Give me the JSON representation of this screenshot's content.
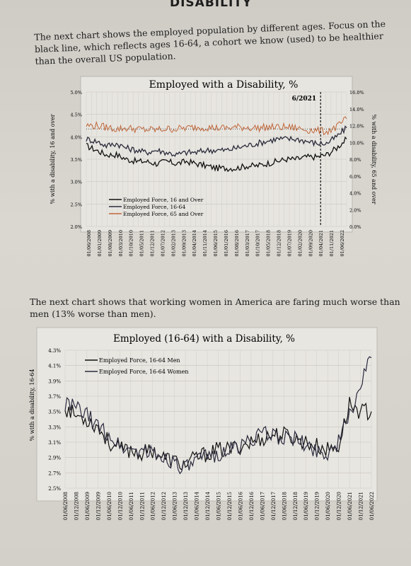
{
  "header": "DISABILITY",
  "paragraph1": "The next chart shows the employed population by different ages. Focus on the black line, which reflects ages 16-64, a cohort we know (used) to be healthier than the overall US population.",
  "paragraph2": "The next chart shows that working women in America are faring much worse than men (13% worse than men).",
  "chart_data": [
    {
      "type": "line",
      "title": "Employed with a Disability, %",
      "ylabel": "% with a disability, 16 and over",
      "y2label": "% with a disability, 65 and over",
      "ylim": [
        2.0,
        5.0
      ],
      "y2lim": [
        0.0,
        16.0
      ],
      "yticks": [
        "2.0%",
        "2.5%",
        "3.0%",
        "3.5%",
        "4.0%",
        "4.5%",
        "5.0%"
      ],
      "y2ticks": [
        "0.0%",
        "2.0%",
        "4.0%",
        "6.0%",
        "8.0%",
        "10.0%",
        "12.0%",
        "14.0%",
        "16.0%"
      ],
      "xticks": [
        "01/06/2008",
        "01/01/2009",
        "01/08/2009",
        "01/03/2010",
        "01/10/2010",
        "01/05/2011",
        "01/12/2011",
        "01/07/2012",
        "01/02/2013",
        "01/09/2013",
        "01/04/2014",
        "01/11/2014",
        "01/06/2015",
        "01/01/2016",
        "01/08/2016",
        "01/03/2017",
        "01/10/2017",
        "01/05/2018",
        "01/12/2018",
        "01/07/2019",
        "01/02/2020",
        "01/09/2020",
        "01/04/2021",
        "01/11/2021",
        "01/06/2022"
      ],
      "annotation": "6/2021",
      "legend_position": "bottom-left",
      "series": [
        {
          "name": "Employed Force, 16 and Over",
          "axis": "left",
          "color": "#111111",
          "values": [
            3.8,
            3.7,
            3.6,
            3.6,
            3.5,
            3.45,
            3.45,
            3.4,
            3.45,
            3.4,
            3.45,
            3.4,
            3.35,
            3.3,
            3.3,
            3.3,
            3.35,
            3.35,
            3.4,
            3.45,
            3.5,
            3.5,
            3.55,
            3.55,
            3.6,
            3.75,
            3.95
          ]
        },
        {
          "name": "Employed Force, 16-64",
          "axis": "left",
          "color": "#2a2a3a",
          "values": [
            3.95,
            3.9,
            3.8,
            3.85,
            3.75,
            3.7,
            3.65,
            3.7,
            3.65,
            3.6,
            3.65,
            3.65,
            3.7,
            3.7,
            3.7,
            3.75,
            3.8,
            3.85,
            3.9,
            3.95,
            3.95,
            3.95,
            3.9,
            3.85,
            3.85,
            4.0,
            4.2
          ]
        },
        {
          "name": "Employed Force, 65 and Over",
          "axis": "right",
          "color": "#c0673a",
          "values": [
            12.0,
            12.0,
            11.8,
            11.6,
            11.7,
            11.6,
            11.5,
            11.5,
            11.6,
            11.6,
            11.7,
            11.8,
            11.8,
            11.7,
            11.7,
            11.8,
            11.8,
            11.7,
            11.8,
            11.8,
            11.8,
            11.7,
            11.5,
            11.4,
            11.3,
            11.8,
            12.8
          ]
        }
      ]
    },
    {
      "type": "line",
      "title": "Employed (16-64) with a Disability, %",
      "ylabel": "% with a disability, 16-64",
      "ylim": [
        2.5,
        4.3
      ],
      "yticks": [
        "2.5%",
        "2.7%",
        "2.9%",
        "3.1%",
        "3.3%",
        "3.5%",
        "3.7%",
        "3.9%",
        "4.1%",
        "4.3%"
      ],
      "xticks": [
        "01/06/2008",
        "01/12/2008",
        "01/06/2009",
        "01/12/2009",
        "01/06/2010",
        "01/12/2010",
        "01/06/2011",
        "01/12/2011",
        "01/06/2012",
        "01/12/2012",
        "01/06/2013",
        "01/12/2013",
        "01/06/2014",
        "01/12/2014",
        "01/06/2015",
        "01/12/2015",
        "01/06/2016",
        "01/12/2016",
        "01/06/2017",
        "01/12/2017",
        "01/06/2018",
        "01/12/2018",
        "01/06/2019",
        "01/12/2019",
        "01/06/2020",
        "01/12/2020",
        "01/06/2021",
        "01/12/2021",
        "01/06/2022"
      ],
      "legend_position": "top-left",
      "series": [
        {
          "name": "Employed Force, 16-64 Men",
          "color": "#111111",
          "values": [
            3.55,
            3.45,
            3.4,
            3.3,
            3.1,
            3.0,
            3.0,
            2.95,
            3.0,
            2.9,
            2.85,
            2.8,
            2.9,
            2.95,
            3.0,
            3.0,
            3.05,
            3.1,
            3.15,
            3.2,
            3.2,
            3.15,
            3.1,
            3.05,
            3.0,
            3.05,
            3.6,
            3.5,
            3.5
          ]
        },
        {
          "name": "Employed Force, 16-64 Women",
          "color": "#2b2b3f",
          "values": [
            3.6,
            3.55,
            3.45,
            3.3,
            3.2,
            3.05,
            3.0,
            3.0,
            2.95,
            2.9,
            2.85,
            2.75,
            2.85,
            2.9,
            2.95,
            3.0,
            3.05,
            3.15,
            3.2,
            3.2,
            3.15,
            3.15,
            3.05,
            3.0,
            2.95,
            3.1,
            3.45,
            3.85,
            4.2
          ]
        }
      ]
    }
  ]
}
